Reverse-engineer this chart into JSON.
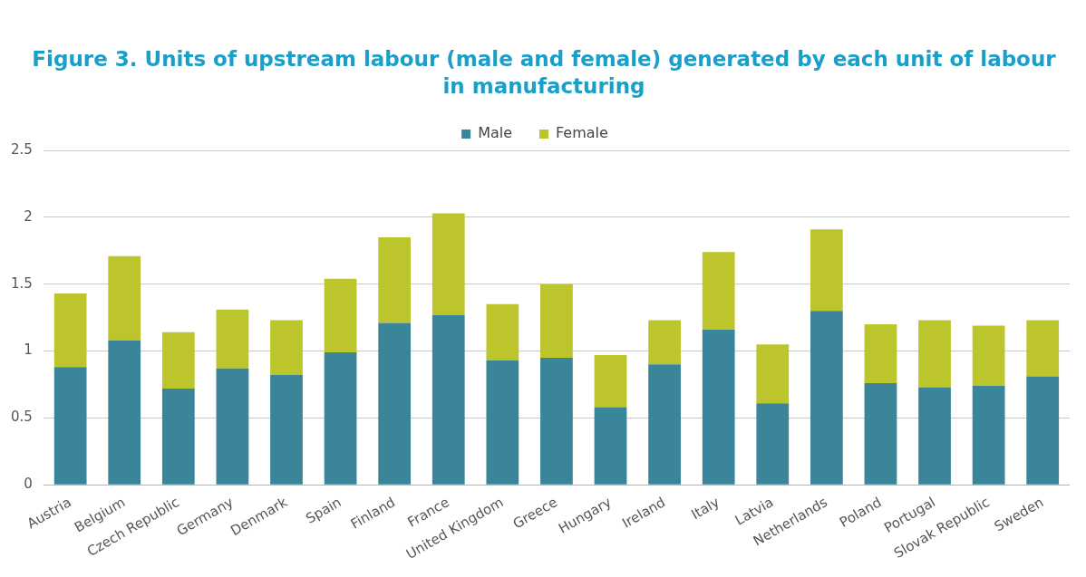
{
  "chart_data": {
    "type": "bar",
    "title": "Figure 3. Units of upstream labour (male and female) generated by each unit of labour in manufacturing",
    "categories": [
      "Austria",
      "Belgium",
      "Czech Republic",
      "Germany",
      "Denmark",
      "Spain",
      "Finland",
      "France",
      "United Kingdom",
      "Greece",
      "Hungary",
      "Ireland",
      "Italy",
      "Latvia",
      "Netherlands",
      "Poland",
      "Portugal",
      "Slovak Republic",
      "Sweden"
    ],
    "series": [
      {
        "name": "Male",
        "color": "#3a8599",
        "values": [
          0.88,
          1.08,
          0.72,
          0.87,
          0.82,
          0.99,
          1.21,
          1.27,
          0.93,
          0.95,
          0.58,
          0.9,
          1.16,
          0.61,
          1.3,
          0.76,
          0.73,
          0.74,
          0.81
        ]
      },
      {
        "name": "Female",
        "color": "#bdc52c",
        "values": [
          0.55,
          0.63,
          0.42,
          0.44,
          0.41,
          0.55,
          0.64,
          0.76,
          0.42,
          0.55,
          0.39,
          0.33,
          0.58,
          0.44,
          0.61,
          0.44,
          0.5,
          0.45,
          0.42
        ]
      }
    ],
    "stacked": true,
    "ylim": [
      0,
      2.5
    ],
    "yticks": [
      0,
      0.5,
      1,
      1.5,
      2,
      2.5
    ],
    "grid": "y",
    "legend": "top"
  }
}
